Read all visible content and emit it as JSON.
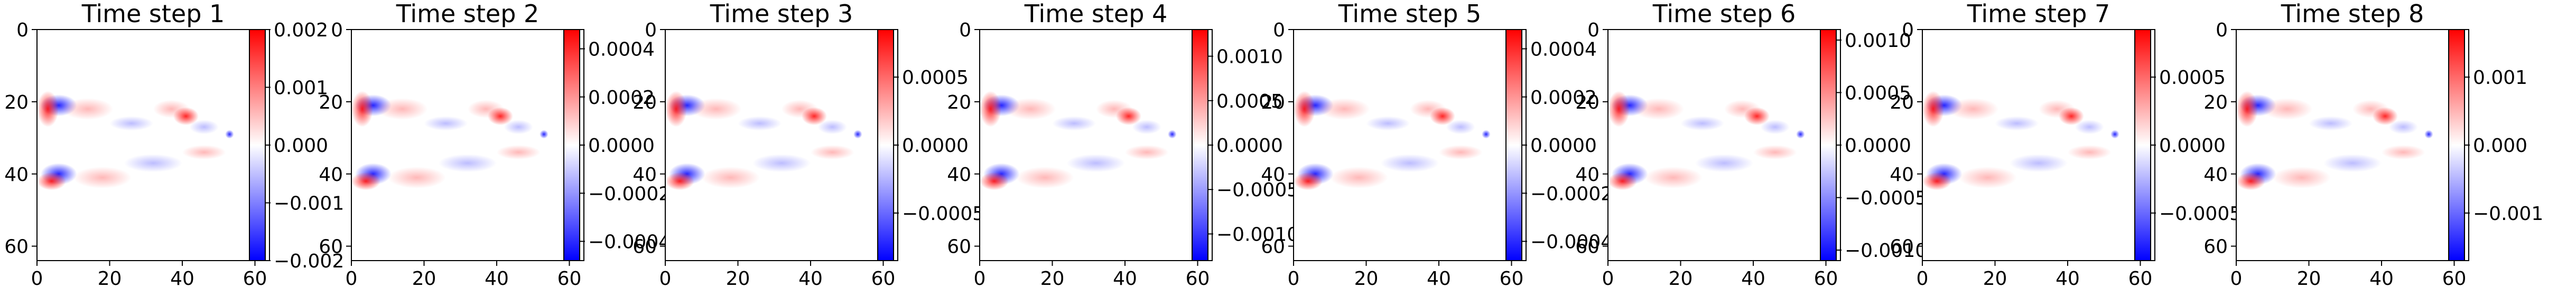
{
  "chart_data": {
    "type": "heatmap",
    "colormap": "bwr",
    "colors": {
      "negative": "#0000ff",
      "zero": "#ffffff",
      "positive": "#ff0000"
    },
    "panels": [
      {
        "title": "Time step 1",
        "xticks": [
          0,
          20,
          40,
          60
        ],
        "yticks": [
          0,
          20,
          40,
          60
        ],
        "xlim": [
          0,
          64
        ],
        "ylim": [
          64,
          0
        ],
        "colorbar": {
          "range": [
            -0.002,
            0.002
          ],
          "ticks": [
            -0.002,
            -0.001,
            0.0,
            0.001,
            0.002
          ],
          "tick_labels": [
            "−0.002",
            "−0.001",
            "0.000",
            "0.001",
            "0.002"
          ]
        }
      },
      {
        "title": "Time step 2",
        "xticks": [
          0,
          20,
          40,
          60
        ],
        "yticks": [
          0,
          20,
          40,
          60
        ],
        "xlim": [
          0,
          64
        ],
        "ylim": [
          64,
          0
        ],
        "colorbar": {
          "range": [
            -0.00048,
            0.00048
          ],
          "ticks": [
            -0.0004,
            -0.0002,
            0.0,
            0.0002,
            0.0004
          ],
          "tick_labels": [
            "−0.0004",
            "−0.0002",
            "0.0000",
            "0.0002",
            "0.0004"
          ]
        }
      },
      {
        "title": "Time step 3",
        "xticks": [
          0,
          20,
          40,
          60
        ],
        "yticks": [
          0,
          20,
          40,
          60
        ],
        "xlim": [
          0,
          64
        ],
        "ylim": [
          64,
          0
        ],
        "colorbar": {
          "range": [
            -0.00085,
            0.00085
          ],
          "ticks": [
            -0.0005,
            0.0,
            0.0005
          ],
          "tick_labels": [
            "−0.0005",
            "0.0000",
            "0.0005"
          ]
        }
      },
      {
        "title": "Time step 4",
        "xticks": [
          0,
          20,
          40,
          60
        ],
        "yticks": [
          0,
          20,
          40,
          60
        ],
        "xlim": [
          0,
          64
        ],
        "ylim": [
          64,
          0
        ],
        "colorbar": {
          "range": [
            -0.0013,
            0.0013
          ],
          "ticks": [
            -0.001,
            -0.0005,
            0.0,
            0.0005,
            0.001
          ],
          "tick_labels": [
            "−0.0010",
            "−0.0005",
            "0.0000",
            "0.0005",
            "0.0010"
          ]
        }
      },
      {
        "title": "Time step 5",
        "xticks": [
          0,
          20,
          40,
          60
        ],
        "yticks": [
          0,
          20,
          40,
          60
        ],
        "xlim": [
          0,
          64
        ],
        "ylim": [
          64,
          0
        ],
        "colorbar": {
          "range": [
            -0.00048,
            0.00048
          ],
          "ticks": [
            -0.0004,
            -0.0002,
            0.0,
            0.0002,
            0.0004
          ],
          "tick_labels": [
            "−0.0004",
            "−0.0002",
            "0.0000",
            "0.0002",
            "0.0004"
          ]
        }
      },
      {
        "title": "Time step 6",
        "xticks": [
          0,
          20,
          40,
          60
        ],
        "yticks": [
          0,
          20,
          40,
          60
        ],
        "xlim": [
          0,
          64
        ],
        "ylim": [
          64,
          0
        ],
        "colorbar": {
          "range": [
            -0.0011,
            0.0011
          ],
          "ticks": [
            -0.001,
            -0.0005,
            0.0,
            0.0005,
            0.001
          ],
          "tick_labels": [
            "−0.0010",
            "−0.0005",
            "0.0000",
            "0.0005",
            "0.0010"
          ]
        }
      },
      {
        "title": "Time step 7",
        "xticks": [
          0,
          20,
          40,
          60
        ],
        "yticks": [
          0,
          20,
          40,
          60
        ],
        "xlim": [
          0,
          64
        ],
        "ylim": [
          64,
          0
        ],
        "colorbar": {
          "range": [
            -0.00085,
            0.00085
          ],
          "ticks": [
            -0.0005,
            0.0,
            0.0005
          ],
          "tick_labels": [
            "−0.0005",
            "0.0000",
            "0.0005"
          ]
        }
      },
      {
        "title": "Time step 8",
        "xticks": [
          0,
          20,
          40,
          60
        ],
        "yticks": [
          0,
          20,
          40,
          60
        ],
        "xlim": [
          0,
          64
        ],
        "ylim": [
          64,
          0
        ],
        "colorbar": {
          "range": [
            -0.0017,
            0.0017
          ],
          "ticks": [
            -0.001,
            0.0,
            0.001
          ],
          "tick_labels": [
            "−0.001",
            "0.000",
            "0.001"
          ]
        }
      }
    ]
  }
}
